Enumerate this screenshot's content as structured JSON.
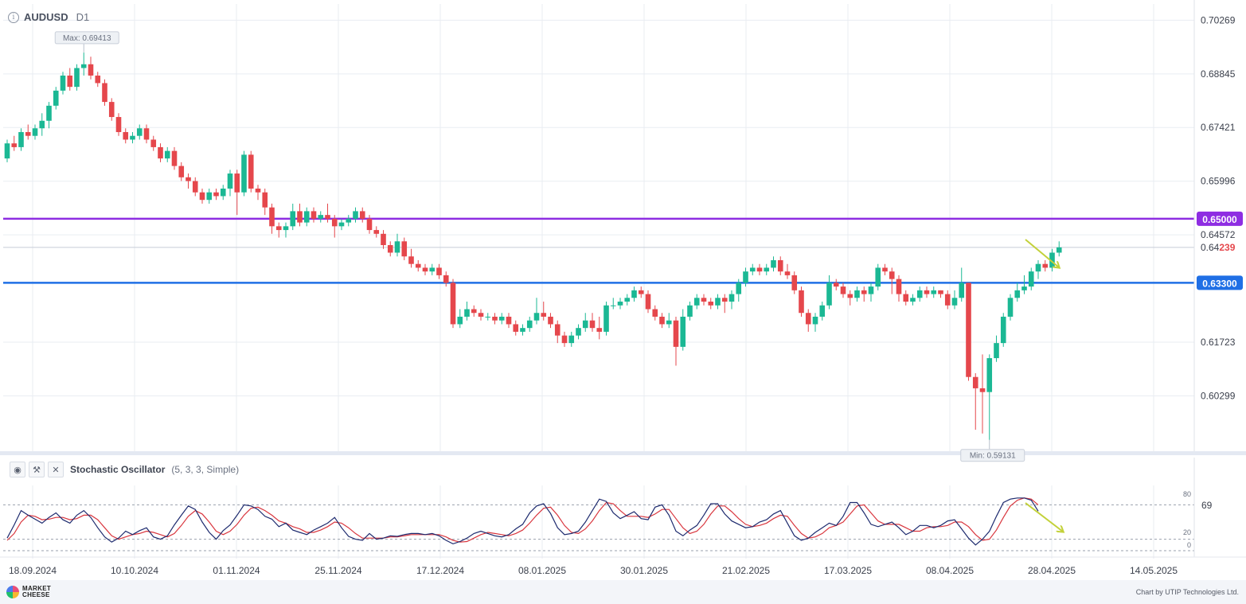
{
  "header": {
    "symbol": "AUDUSD",
    "timeframe": "D1",
    "info_icon": "info-circle-icon"
  },
  "indicator": {
    "name": "Stochastic Oscillator",
    "params": "(5, 3, 3, Simple)",
    "eye_icon": "eye-icon",
    "wrench_icon": "wrench-icon",
    "close_icon": "close-icon",
    "value_label": "69",
    "level_labels": [
      "80",
      "20",
      "0"
    ],
    "k_color": "#1d2a6e",
    "d_color": "#d9363e"
  },
  "footer": {
    "logo_line1": "MARKET",
    "logo_line2": "CHEESE",
    "credit": "Chart by UTIP Technologies Ltd."
  },
  "chart_data": {
    "type": "candlestick",
    "symbol": "AUDUSD",
    "timeframe": "D1",
    "ylim": [
      0.5883,
      0.707
    ],
    "y_ticks": [
      "0.70269",
      "0.68845",
      "0.67421",
      "0.65996",
      "0.64572",
      "0.61723",
      "0.60299"
    ],
    "x_ticks": [
      "18.09.2024",
      "10.10.2024",
      "01.11.2024",
      "25.11.2024",
      "17.12.2024",
      "08.01.2025",
      "30.01.2025",
      "21.02.2025",
      "17.03.2025",
      "08.04.2025",
      "28.04.2025",
      "14.05.2025"
    ],
    "max_label": "Max: 0.69413",
    "min_label": "Min: 0.59131",
    "max_value": 0.69413,
    "min_value": 0.59131,
    "current_price": {
      "value": 0.64239,
      "label_prefix": "0.64",
      "label_suffix": "239"
    },
    "horizontal_levels": [
      {
        "value": 0.65,
        "label": "0.65000",
        "color": "#8e2de2"
      },
      {
        "value": 0.633,
        "label": "0.63300",
        "color": "#1f6fe5"
      }
    ],
    "bull_color": "#1bb894",
    "bear_color": "#e5474c",
    "candles": [
      [
        0.666,
        0.67,
        0.665,
        0.671
      ],
      [
        0.67,
        0.669,
        0.668,
        0.672
      ],
      [
        0.669,
        0.673,
        0.668,
        0.674
      ],
      [
        0.673,
        0.672,
        0.671,
        0.675
      ],
      [
        0.672,
        0.674,
        0.671,
        0.675
      ],
      [
        0.674,
        0.676,
        0.672,
        0.678
      ],
      [
        0.676,
        0.68,
        0.674,
        0.681
      ],
      [
        0.68,
        0.684,
        0.679,
        0.685
      ],
      [
        0.684,
        0.688,
        0.683,
        0.689
      ],
      [
        0.688,
        0.685,
        0.684,
        0.69
      ],
      [
        0.685,
        0.69,
        0.684,
        0.691
      ],
      [
        0.69,
        0.691,
        0.688,
        0.6941
      ],
      [
        0.691,
        0.688,
        0.687,
        0.693
      ],
      [
        0.688,
        0.686,
        0.685,
        0.689
      ],
      [
        0.686,
        0.681,
        0.68,
        0.687
      ],
      [
        0.681,
        0.677,
        0.676,
        0.682
      ],
      [
        0.677,
        0.673,
        0.672,
        0.678
      ],
      [
        0.673,
        0.671,
        0.67,
        0.674
      ],
      [
        0.671,
        0.672,
        0.67,
        0.673
      ],
      [
        0.672,
        0.674,
        0.671,
        0.675
      ],
      [
        0.674,
        0.671,
        0.67,
        0.675
      ],
      [
        0.671,
        0.669,
        0.668,
        0.672
      ],
      [
        0.669,
        0.666,
        0.665,
        0.67
      ],
      [
        0.666,
        0.668,
        0.665,
        0.669
      ],
      [
        0.668,
        0.664,
        0.663,
        0.669
      ],
      [
        0.664,
        0.661,
        0.66,
        0.665
      ],
      [
        0.661,
        0.66,
        0.658,
        0.662
      ],
      [
        0.66,
        0.657,
        0.656,
        0.661
      ],
      [
        0.657,
        0.655,
        0.654,
        0.658
      ],
      [
        0.655,
        0.657,
        0.654,
        0.658
      ],
      [
        0.657,
        0.656,
        0.655,
        0.658
      ],
      [
        0.656,
        0.658,
        0.655,
        0.659
      ],
      [
        0.658,
        0.662,
        0.656,
        0.663
      ],
      [
        0.662,
        0.657,
        0.651,
        0.663
      ],
      [
        0.657,
        0.667,
        0.656,
        0.668
      ],
      [
        0.667,
        0.658,
        0.657,
        0.668
      ],
      [
        0.658,
        0.657,
        0.655,
        0.659
      ],
      [
        0.657,
        0.653,
        0.651,
        0.658
      ],
      [
        0.653,
        0.648,
        0.646,
        0.654
      ],
      [
        0.648,
        0.647,
        0.645,
        0.649
      ],
      [
        0.647,
        0.648,
        0.645,
        0.649
      ],
      [
        0.648,
        0.652,
        0.647,
        0.654
      ],
      [
        0.652,
        0.649,
        0.648,
        0.654
      ],
      [
        0.649,
        0.652,
        0.648,
        0.653
      ],
      [
        0.652,
        0.65,
        0.649,
        0.653
      ],
      [
        0.65,
        0.651,
        0.649,
        0.652
      ],
      [
        0.651,
        0.65,
        0.649,
        0.654
      ],
      [
        0.65,
        0.648,
        0.645,
        0.651
      ],
      [
        0.648,
        0.649,
        0.647,
        0.65
      ],
      [
        0.649,
        0.65,
        0.648,
        0.651
      ],
      [
        0.65,
        0.652,
        0.649,
        0.653
      ],
      [
        0.652,
        0.65,
        0.649,
        0.653
      ],
      [
        0.65,
        0.647,
        0.646,
        0.651
      ],
      [
        0.647,
        0.646,
        0.645,
        0.648
      ],
      [
        0.646,
        0.643,
        0.642,
        0.647
      ],
      [
        0.643,
        0.641,
        0.64,
        0.644
      ],
      [
        0.641,
        0.644,
        0.64,
        0.646
      ],
      [
        0.644,
        0.64,
        0.639,
        0.645
      ],
      [
        0.64,
        0.638,
        0.637,
        0.642
      ],
      [
        0.638,
        0.637,
        0.636,
        0.639
      ],
      [
        0.637,
        0.636,
        0.635,
        0.638
      ],
      [
        0.636,
        0.637,
        0.635,
        0.638
      ],
      [
        0.637,
        0.635,
        0.634,
        0.638
      ],
      [
        0.635,
        0.633,
        0.632,
        0.636
      ],
      [
        0.633,
        0.622,
        0.621,
        0.634
      ],
      [
        0.622,
        0.624,
        0.621,
        0.626
      ],
      [
        0.624,
        0.626,
        0.623,
        0.628
      ],
      [
        0.626,
        0.625,
        0.624,
        0.627
      ],
      [
        0.625,
        0.624,
        0.623,
        0.626
      ],
      [
        0.624,
        0.624,
        0.623,
        0.625
      ],
      [
        0.624,
        0.623,
        0.622,
        0.625
      ],
      [
        0.623,
        0.624,
        0.622,
        0.625
      ],
      [
        0.624,
        0.622,
        0.621,
        0.625
      ],
      [
        0.622,
        0.62,
        0.619,
        0.623
      ],
      [
        0.62,
        0.621,
        0.619,
        0.622
      ],
      [
        0.621,
        0.623,
        0.62,
        0.624
      ],
      [
        0.623,
        0.625,
        0.622,
        0.629
      ],
      [
        0.625,
        0.624,
        0.623,
        0.628
      ],
      [
        0.624,
        0.622,
        0.621,
        0.625
      ],
      [
        0.622,
        0.619,
        0.617,
        0.623
      ],
      [
        0.619,
        0.617,
        0.616,
        0.62
      ],
      [
        0.617,
        0.619,
        0.616,
        0.62
      ],
      [
        0.619,
        0.621,
        0.618,
        0.622
      ],
      [
        0.621,
        0.623,
        0.62,
        0.625
      ],
      [
        0.623,
        0.621,
        0.62,
        0.625
      ],
      [
        0.621,
        0.62,
        0.618,
        0.624
      ],
      [
        0.62,
        0.627,
        0.619,
        0.628
      ],
      [
        0.627,
        0.627,
        0.626,
        0.629
      ],
      [
        0.627,
        0.628,
        0.626,
        0.629
      ],
      [
        0.628,
        0.629,
        0.627,
        0.63
      ],
      [
        0.629,
        0.631,
        0.628,
        0.632
      ],
      [
        0.631,
        0.63,
        0.629,
        0.632
      ],
      [
        0.63,
        0.626,
        0.625,
        0.631
      ],
      [
        0.626,
        0.624,
        0.623,
        0.627
      ],
      [
        0.624,
        0.622,
        0.621,
        0.625
      ],
      [
        0.622,
        0.623,
        0.621,
        0.625
      ],
      [
        0.623,
        0.616,
        0.611,
        0.624
      ],
      [
        0.616,
        0.624,
        0.615,
        0.626
      ],
      [
        0.624,
        0.627,
        0.623,
        0.628
      ],
      [
        0.627,
        0.629,
        0.626,
        0.63
      ],
      [
        0.629,
        0.628,
        0.627,
        0.63
      ],
      [
        0.628,
        0.627,
        0.626,
        0.629
      ],
      [
        0.627,
        0.629,
        0.626,
        0.63
      ],
      [
        0.629,
        0.628,
        0.625,
        0.63
      ],
      [
        0.628,
        0.63,
        0.626,
        0.631
      ],
      [
        0.63,
        0.633,
        0.628,
        0.634
      ],
      [
        0.633,
        0.636,
        0.632,
        0.637
      ],
      [
        0.636,
        0.637,
        0.635,
        0.638
      ],
      [
        0.637,
        0.636,
        0.635,
        0.638
      ],
      [
        0.636,
        0.637,
        0.635,
        0.638
      ],
      [
        0.637,
        0.639,
        0.636,
        0.64
      ],
      [
        0.639,
        0.636,
        0.635,
        0.64
      ],
      [
        0.636,
        0.635,
        0.634,
        0.638
      ],
      [
        0.635,
        0.631,
        0.63,
        0.636
      ],
      [
        0.631,
        0.625,
        0.624,
        0.632
      ],
      [
        0.625,
        0.622,
        0.62,
        0.626
      ],
      [
        0.622,
        0.624,
        0.62,
        0.625
      ],
      [
        0.624,
        0.627,
        0.623,
        0.628
      ],
      [
        0.627,
        0.633,
        0.626,
        0.635
      ],
      [
        0.633,
        0.632,
        0.631,
        0.634
      ],
      [
        0.632,
        0.63,
        0.629,
        0.633
      ],
      [
        0.63,
        0.629,
        0.627,
        0.631
      ],
      [
        0.629,
        0.631,
        0.628,
        0.632
      ],
      [
        0.631,
        0.63,
        0.628,
        0.632
      ],
      [
        0.63,
        0.632,
        0.628,
        0.633
      ],
      [
        0.632,
        0.637,
        0.631,
        0.638
      ],
      [
        0.637,
        0.636,
        0.635,
        0.638
      ],
      [
        0.636,
        0.634,
        0.63,
        0.637
      ],
      [
        0.634,
        0.63,
        0.628,
        0.635
      ],
      [
        0.63,
        0.628,
        0.627,
        0.631
      ],
      [
        0.628,
        0.629,
        0.627,
        0.63
      ],
      [
        0.629,
        0.631,
        0.628,
        0.632
      ],
      [
        0.631,
        0.63,
        0.629,
        0.632
      ],
      [
        0.63,
        0.631,
        0.629,
        0.632
      ],
      [
        0.631,
        0.63,
        0.629,
        0.631
      ],
      [
        0.63,
        0.627,
        0.626,
        0.631
      ],
      [
        0.627,
        0.629,
        0.626,
        0.631
      ],
      [
        0.629,
        0.633,
        0.628,
        0.637
      ],
      [
        0.633,
        0.608,
        0.607,
        0.633
      ],
      [
        0.608,
        0.605,
        0.594,
        0.609
      ],
      [
        0.605,
        0.604,
        0.593,
        0.614
      ],
      [
        0.604,
        0.613,
        0.5913,
        0.614
      ],
      [
        0.613,
        0.617,
        0.612,
        0.619
      ],
      [
        0.617,
        0.624,
        0.616,
        0.625
      ],
      [
        0.624,
        0.629,
        0.623,
        0.63
      ],
      [
        0.629,
        0.631,
        0.628,
        0.633
      ],
      [
        0.631,
        0.632,
        0.63,
        0.635
      ],
      [
        0.632,
        0.636,
        0.631,
        0.637
      ],
      [
        0.636,
        0.638,
        0.634,
        0.639
      ],
      [
        0.638,
        0.637,
        0.636,
        0.639
      ],
      [
        0.637,
        0.641,
        0.636,
        0.642
      ],
      [
        0.641,
        0.6424,
        0.64,
        0.644
      ]
    ],
    "stochastic": {
      "levels": [
        80,
        20,
        0
      ],
      "k": [
        22,
        45,
        70,
        62,
        55,
        48,
        58,
        66,
        54,
        48,
        62,
        70,
        58,
        40,
        24,
        15,
        22,
        34,
        28,
        35,
        40,
        24,
        20,
        26,
        45,
        62,
        78,
        72,
        50,
        32,
        20,
        35,
        45,
        62,
        80,
        78,
        72,
        60,
        55,
        42,
        48,
        36,
        32,
        28,
        36,
        42,
        48,
        58,
        40,
        25,
        20,
        18,
        30,
        20,
        22,
        26,
        25,
        28,
        30,
        30,
        28,
        30,
        26,
        18,
        12,
        16,
        22,
        30,
        34,
        30,
        26,
        24,
        28,
        38,
        46,
        66,
        78,
        82,
        65,
        40,
        28,
        30,
        34,
        50,
        70,
        90,
        86,
        66,
        56,
        62,
        68,
        56,
        54,
        76,
        80,
        62,
        34,
        26,
        36,
        44,
        62,
        82,
        82,
        64,
        52,
        46,
        40,
        42,
        50,
        54,
        64,
        70,
        48,
        26,
        18,
        22,
        32,
        40,
        48,
        44,
        60,
        84,
        84,
        66,
        46,
        42,
        46,
        50,
        40,
        28,
        34,
        44,
        44,
        40,
        44,
        52,
        54,
        38,
        22,
        10,
        20,
        34,
        60,
        84,
        90,
        92,
        92,
        88,
        69
      ],
      "d": [
        18,
        30,
        50,
        62,
        60,
        54,
        55,
        58,
        58,
        54,
        56,
        62,
        62,
        54,
        40,
        26,
        20,
        24,
        28,
        30,
        34,
        32,
        28,
        24,
        30,
        44,
        60,
        70,
        64,
        50,
        34,
        28,
        34,
        46,
        62,
        74,
        76,
        70,
        62,
        52,
        48,
        42,
        38,
        32,
        32,
        36,
        42,
        50,
        48,
        40,
        30,
        22,
        22,
        22,
        22,
        24,
        24,
        26,
        28,
        28,
        28,
        28,
        28,
        24,
        18,
        15,
        16,
        22,
        28,
        32,
        30,
        28,
        26,
        30,
        36,
        48,
        62,
        74,
        76,
        62,
        44,
        32,
        30,
        38,
        52,
        70,
        84,
        82,
        70,
        60,
        60,
        60,
        58,
        64,
        72,
        72,
        56,
        40,
        30,
        34,
        46,
        64,
        78,
        78,
        68,
        56,
        46,
        42,
        44,
        48,
        56,
        62,
        60,
        44,
        30,
        22,
        24,
        30,
        40,
        44,
        50,
        64,
        78,
        80,
        66,
        52,
        46,
        46,
        46,
        40,
        34,
        34,
        40,
        42,
        42,
        44,
        50,
        50,
        42,
        28,
        18,
        20,
        36,
        58,
        78,
        88,
        92,
        90,
        80
      ]
    }
  }
}
